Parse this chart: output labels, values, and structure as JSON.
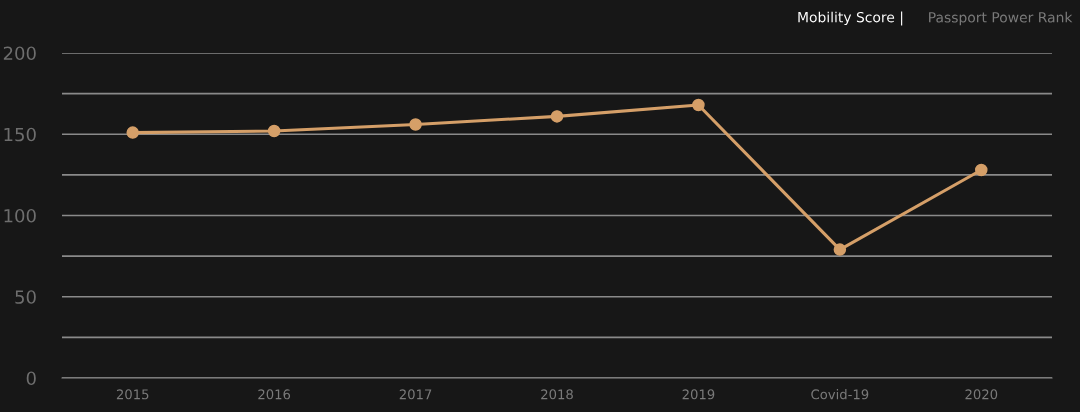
{
  "chart_data": {
    "type": "line",
    "title": "Mobility Score |",
    "subtitle": "Passport Power Rank",
    "categories": [
      "2015",
      "2016",
      "2017",
      "2018",
      "2019",
      "Covid-19",
      "2020"
    ],
    "series": [
      {
        "color": "#d59f68",
        "values": [
          151,
          152,
          156,
          161,
          168,
          79,
          128
        ]
      }
    ],
    "ylim": [
      0,
      200
    ],
    "yticks": [
      0,
      {
        "value": 25,
        "label": null
      },
      50,
      {
        "value": 75,
        "label": null
      },
      100,
      {
        "value": 125,
        "label": null
      },
      150,
      {
        "value": 175,
        "label": null
      },
      200
    ],
    "grid": "y",
    "marker": "circle",
    "line_style": "solid"
  }
}
